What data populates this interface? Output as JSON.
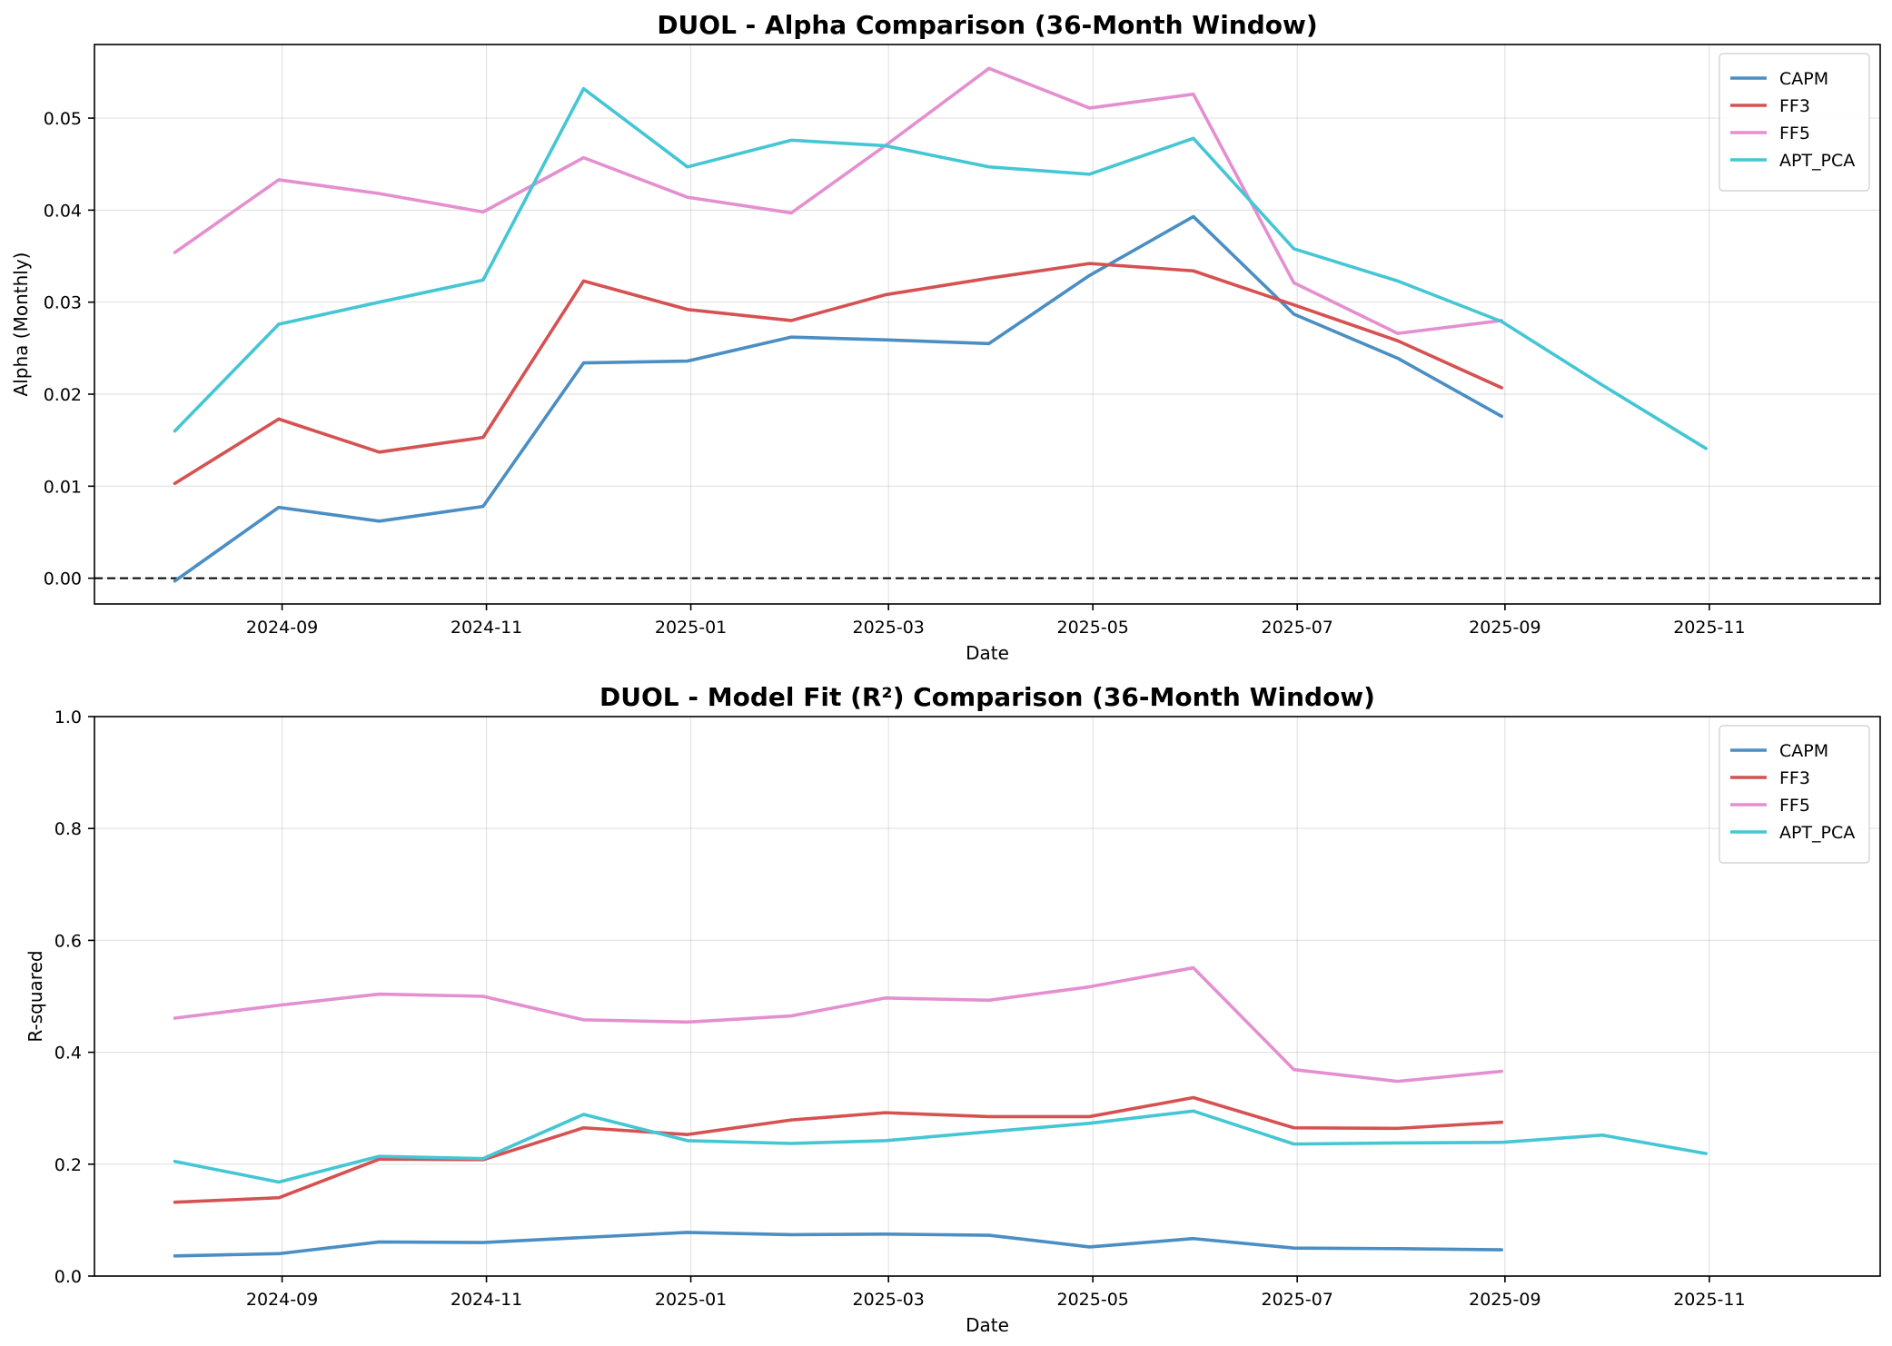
{
  "chart_data": [
    {
      "type": "line",
      "title": "DUOL - Alpha Comparison (36-Month Window)",
      "xlabel": "Date",
      "ylabel": "Alpha (Monthly)",
      "x_axis_type": "date",
      "xlim": [
        "2024-07-07",
        "2025-12-22"
      ],
      "ylim": [
        -0.0028,
        0.058
      ],
      "x_ticks": [
        "2024-09",
        "2024-11",
        "2025-01",
        "2025-03",
        "2025-05",
        "2025-07",
        "2025-09",
        "2025-11"
      ],
      "y_ticks": [
        "0.00",
        "0.01",
        "0.02",
        "0.03",
        "0.04",
        "0.05"
      ],
      "grid": true,
      "legend_position": "top-right",
      "reference_line": {
        "y": 0,
        "style": "dashed",
        "color": "#000000"
      },
      "x": [
        "2024-07-31",
        "2024-08-31",
        "2024-09-30",
        "2024-10-31",
        "2024-11-30",
        "2024-12-31",
        "2025-01-31",
        "2025-02-28",
        "2025-03-31",
        "2025-04-30",
        "2025-05-31",
        "2025-06-30",
        "2025-07-31",
        "2025-08-31",
        "2025-09-30",
        "2025-10-31"
      ],
      "series": [
        {
          "name": "CAPM",
          "color": "#4a8ec4",
          "values": [
            -0.0003,
            0.0077,
            0.0062,
            0.0078,
            0.0234,
            0.0236,
            0.0262,
            0.0259,
            0.0255,
            0.0329,
            0.0393,
            0.0287,
            0.0239,
            0.0176,
            null,
            null
          ]
        },
        {
          "name": "FF3",
          "color": "#d65151",
          "values": [
            0.0103,
            0.0173,
            0.0137,
            0.0153,
            0.0323,
            0.0292,
            0.028,
            0.0308,
            0.0326,
            0.0342,
            0.0334,
            0.0297,
            0.0258,
            0.0207,
            null,
            null
          ]
        },
        {
          "name": "FF5",
          "color": "#e48fd0",
          "values": [
            0.0354,
            0.0433,
            0.0418,
            0.0398,
            0.0457,
            0.0414,
            0.0397,
            0.047,
            0.0554,
            0.0511,
            0.0526,
            0.0321,
            0.0266,
            0.028,
            null,
            null
          ]
        },
        {
          "name": "APT_PCA",
          "color": "#44c6d4",
          "values": [
            0.016,
            0.0276,
            0.03,
            0.0324,
            0.0532,
            0.0447,
            0.0476,
            0.047,
            0.0447,
            0.0439,
            0.0478,
            0.0358,
            0.0323,
            0.0279,
            0.021,
            0.0141
          ]
        }
      ]
    },
    {
      "type": "line",
      "title": "DUOL - Model Fit (R²) Comparison (36-Month Window)",
      "xlabel": "Date",
      "ylabel": "R-squared",
      "x_axis_type": "date",
      "xlim": [
        "2024-07-07",
        "2025-12-22"
      ],
      "ylim": [
        0,
        1
      ],
      "x_ticks": [
        "2024-09",
        "2024-11",
        "2025-01",
        "2025-03",
        "2025-05",
        "2025-07",
        "2025-09",
        "2025-11"
      ],
      "y_ticks": [
        "0.0",
        "0.2",
        "0.4",
        "0.6",
        "0.8",
        "1.0"
      ],
      "grid": true,
      "legend_position": "top-right",
      "x": [
        "2024-07-31",
        "2024-08-31",
        "2024-09-30",
        "2024-10-31",
        "2024-11-30",
        "2024-12-31",
        "2025-01-31",
        "2025-02-28",
        "2025-03-31",
        "2025-04-30",
        "2025-05-31",
        "2025-06-30",
        "2025-07-31",
        "2025-08-31",
        "2025-09-30",
        "2025-10-31"
      ],
      "series": [
        {
          "name": "CAPM",
          "color": "#4a8ec4",
          "values": [
            0.036,
            0.04,
            0.061,
            0.06,
            0.069,
            0.078,
            0.074,
            0.075,
            0.073,
            0.052,
            0.067,
            0.05,
            0.049,
            0.047,
            null,
            null
          ]
        },
        {
          "name": "FF3",
          "color": "#d65151",
          "values": [
            0.132,
            0.14,
            0.209,
            0.208,
            0.265,
            0.253,
            0.279,
            0.292,
            0.285,
            0.285,
            0.319,
            0.265,
            0.264,
            0.275,
            null,
            null
          ]
        },
        {
          "name": "FF5",
          "color": "#e48fd0",
          "values": [
            0.461,
            0.484,
            0.504,
            0.5,
            0.458,
            0.454,
            0.465,
            0.497,
            0.493,
            0.517,
            0.551,
            0.369,
            0.348,
            0.366,
            null,
            null
          ]
        },
        {
          "name": "APT_PCA",
          "color": "#44c6d4",
          "values": [
            0.205,
            0.168,
            0.214,
            0.21,
            0.289,
            0.242,
            0.237,
            0.242,
            0.258,
            0.273,
            0.295,
            0.236,
            0.238,
            0.239,
            0.252,
            0.219
          ]
        }
      ]
    }
  ]
}
